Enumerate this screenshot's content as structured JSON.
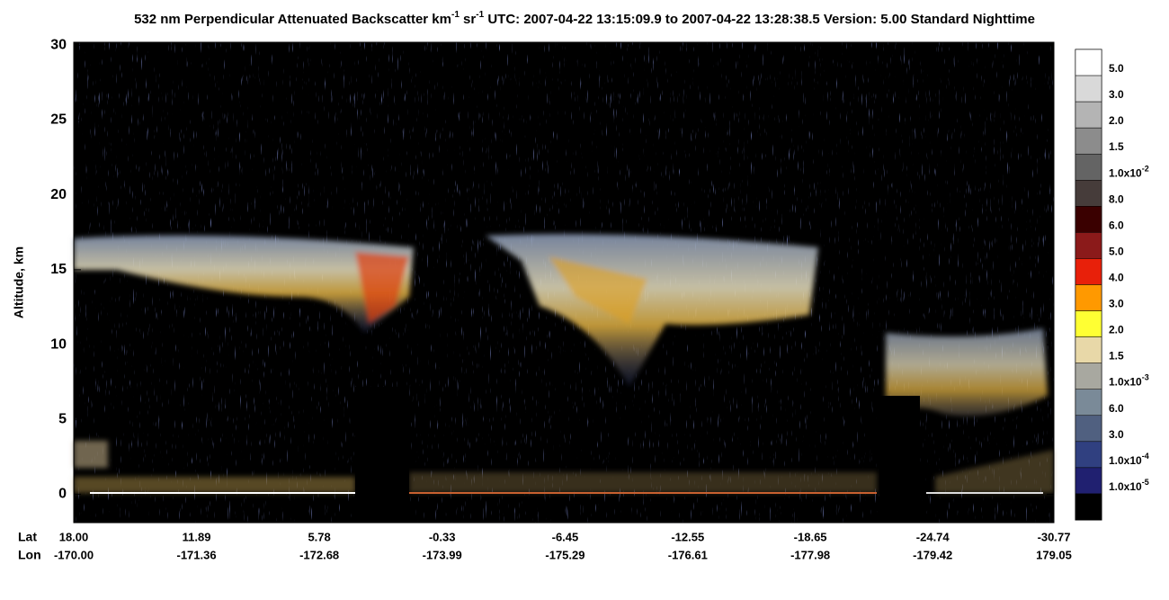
{
  "chart_data": {
    "type": "heatmap",
    "title": {
      "parts": [
        "532 nm Perpendicular Attenuated Backscatter km",
        "-1",
        " sr",
        "-1",
        "  UTC: 2007-04-22 13:15:09.9 to 2007-04-22 13:28:38.5  Version: 5.00 Standard Nighttime"
      ]
    },
    "y_label": "Altitude, km",
    "ylim": [
      -1.9,
      30.2
    ],
    "yticks": [
      0,
      5,
      10,
      15,
      20,
      25,
      30
    ],
    "x_row_labels": [
      "Lat",
      "Lon"
    ],
    "xlim": [
      18,
      -30.77
    ],
    "xticks": [
      {
        "value": 18,
        "label": "18.00"
      },
      {
        "value": 11.89,
        "label": "11.89"
      },
      {
        "value": 5.78,
        "label": "5.78"
      },
      {
        "value": -0.33,
        "label": "-0.33"
      },
      {
        "value": -6.45,
        "label": "-6.45"
      },
      {
        "value": -12.55,
        "label": "-12.55"
      },
      {
        "value": -18.65,
        "label": "-18.65"
      },
      {
        "value": -24.74,
        "label": "-24.74"
      },
      {
        "value": -30.77,
        "label": "-30.77"
      }
    ],
    "lon_labels": [
      "-170.00",
      "-171.36",
      "-172.68",
      "-173.99",
      "-175.29",
      "-176.61",
      "-177.98",
      "-179.42",
      "179.05"
    ],
    "colorbar": [
      {
        "color": "#ffffff",
        "label": "5.0"
      },
      {
        "color": "#d9d9d9",
        "label": "3.0"
      },
      {
        "color": "#b4b4b4",
        "label": "2.0"
      },
      {
        "color": "#8c8c8c",
        "label": "1.5"
      },
      {
        "color": "#646464",
        "label": "1.0x10",
        "exponent": "-2"
      },
      {
        "color": "#463c3a",
        "label": "8.0"
      },
      {
        "color": "#3a0000",
        "label": "6.0"
      },
      {
        "color": "#8b1a1a",
        "label": "5.0"
      },
      {
        "color": "#e8200a",
        "label": "4.0"
      },
      {
        "color": "#ff9900",
        "label": "3.0"
      },
      {
        "color": "#ffff33",
        "label": "2.0"
      },
      {
        "color": "#e8d8a8",
        "label": "1.5"
      },
      {
        "color": "#a8a8a0",
        "label": "1.0x10",
        "exponent": "-3"
      },
      {
        "color": "#7a8a98",
        "label": "6.0"
      },
      {
        "color": "#506080",
        "label": "3.0"
      },
      {
        "color": "#304080",
        "label": "1.0x10",
        "exponent": "-4"
      },
      {
        "color": "#202070",
        "label": "1.0x10",
        "exponent": "-5"
      },
      {
        "color": "#000000"
      }
    ]
  }
}
